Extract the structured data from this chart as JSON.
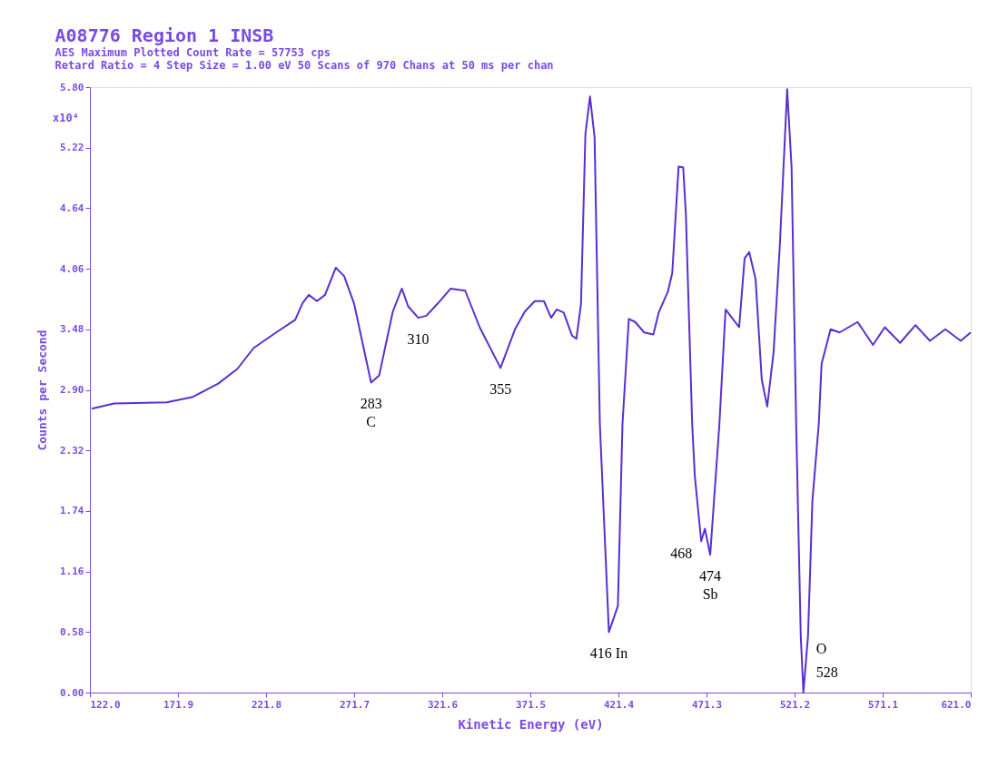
{
  "chart_data": {
    "type": "line",
    "title": "A08776    Region 1   INSB",
    "subtitle": [
      "AES    Maximum Plotted Count Rate = 57753 cps",
      "Retard Ratio = 4    Step Size = 1.00 eV   50 Scans of 970 Chans at 50 ms per chan"
    ],
    "xlabel": "Kinetic Energy   (eV)",
    "ylabel": "Counts per Second",
    "series": [
      {
        "color": "#5a2fd0",
        "x": [
          123.0,
          135.8,
          165.5,
          179.9,
          194.7,
          205.5,
          214.7,
          227.5,
          238.3,
          242.4,
          246.0,
          250.6,
          255.2,
          261.3,
          266.0,
          271.6,
          281.3,
          285.9,
          293.6,
          298.7,
          302.3,
          308.0,
          312.6,
          319.2,
          326.4,
          334.6,
          342.8,
          354.6,
          362.8,
          368.4,
          374.0,
          379.2,
          383.3,
          386.4,
          390.4,
          395.1,
          397.6,
          400.2,
          402.7,
          405.3,
          407.9,
          410.9,
          416.0,
          421.1,
          423.7,
          427.3,
          430.9,
          436.0,
          441.2,
          444.2,
          449.4,
          451.9,
          455.5,
          458.1,
          459.6,
          463.2,
          464.7,
          468.3,
          470.4,
          473.4,
          478.6,
          482.1,
          486.2,
          489.8,
          492.9,
          495.5,
          499.1,
          502.6,
          505.7,
          509.3,
          512.9,
          517.0,
          519.5,
          522.1,
          524.7,
          526.2,
          528.8,
          531.3,
          534.9,
          536.5,
          541.6,
          546.7,
          556.9,
          565.6,
          572.3,
          581.0,
          589.7,
          597.9,
          606.6,
          615.3,
          621.0
        ],
        "values": [
          2.72,
          2.77,
          2.78,
          2.83,
          2.96,
          3.1,
          3.3,
          3.45,
          3.57,
          3.73,
          3.81,
          3.75,
          3.81,
          4.07,
          3.99,
          3.73,
          2.97,
          3.04,
          3.65,
          3.87,
          3.7,
          3.59,
          3.61,
          3.73,
          3.87,
          3.85,
          3.5,
          3.11,
          3.48,
          3.65,
          3.75,
          3.75,
          3.59,
          3.67,
          3.64,
          3.42,
          3.39,
          3.72,
          5.35,
          5.71,
          5.32,
          2.57,
          0.58,
          0.83,
          2.57,
          3.58,
          3.55,
          3.45,
          3.43,
          3.64,
          3.84,
          4.02,
          5.04,
          5.03,
          4.59,
          2.57,
          2.07,
          1.45,
          1.57,
          1.32,
          2.57,
          3.67,
          3.58,
          3.5,
          4.16,
          4.22,
          3.96,
          3.0,
          2.74,
          3.26,
          4.3,
          5.78,
          5.03,
          2.57,
          0.54,
          0.0,
          0.54,
          1.84,
          2.57,
          3.15,
          3.48,
          3.45,
          3.55,
          3.33,
          3.5,
          3.35,
          3.52,
          3.37,
          3.48,
          3.37,
          3.45
        ]
      }
    ],
    "xlim": [
      122.0,
      621.0
    ],
    "xticks": [
      {
        "value": 122,
        "label": "122.0"
      },
      171.9,
      221.8,
      271.7,
      321.6,
      371.5,
      421.4,
      471.3,
      521.2,
      571.1,
      {
        "value": 621,
        "label": "621.0"
      }
    ],
    "ylim": [
      0.0,
      5.8
    ],
    "yticks": [
      {
        "value": 0,
        "label": "0.00"
      },
      0.58,
      1.16,
      1.74,
      2.32,
      {
        "value": 2.9,
        "label": "2.90"
      },
      3.48,
      4.06,
      4.64,
      5.22,
      {
        "value": 5.8,
        "label": "5.80"
      }
    ],
    "grid": false,
    "marker": "none",
    "line_style": "solid",
    "annotations": [
      "x10⁴",
      {
        "text": "283",
        "x": 281.3,
        "y": 2.97
      },
      {
        "text": "C",
        "x": 281.3,
        "y": 2.97
      },
      {
        "text": "310",
        "x": 308.0,
        "y": 3.59
      },
      {
        "text": "355",
        "x": 354.6,
        "y": 3.11
      },
      {
        "text": "416  In",
        "x": 416.0,
        "y": 0.58
      },
      {
        "text": "468",
        "x": 468.3,
        "y": 1.45
      },
      {
        "text": "474",
        "x": 473.4,
        "y": 1.32
      },
      {
        "text": "Sb",
        "x": 473.4,
        "y": 1.32
      },
      {
        "text": "528",
        "x": 526.2,
        "y": 0.0
      },
      {
        "text": "O",
        "x": 526.2,
        "y": 0.0
      }
    ]
  }
}
